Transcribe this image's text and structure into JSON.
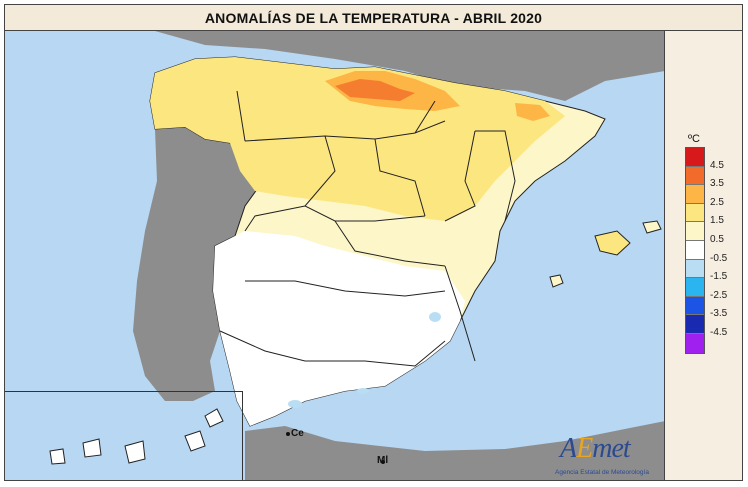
{
  "title": "ANOMALÍAS DE LA TEMPERATURA - ABRIL 2020",
  "legend": {
    "unit": "ºC",
    "entries": [
      {
        "label": "4.5",
        "color": "#d7191c"
      },
      {
        "label": "3.5",
        "color": "#f26b2a"
      },
      {
        "label": "2.5",
        "color": "#fdb545"
      },
      {
        "label": "1.5",
        "color": "#fce680"
      },
      {
        "label": "0.5",
        "color": "#fdf6c8"
      },
      {
        "label": "-0.5",
        "color": "#ffffff"
      },
      {
        "label": "-1.5",
        "color": "#b9def3"
      },
      {
        "label": "-2.5",
        "color": "#2bb5f0"
      },
      {
        "label": "-3.5",
        "color": "#1c55e6"
      },
      {
        "label": "-4.5",
        "color": "#1a2ab0"
      },
      {
        "label": "",
        "color": "#a020f0"
      }
    ]
  },
  "map_labels": {
    "ceuta": "Ce",
    "melilla": "Ml"
  },
  "logo": {
    "first": "A",
    "accent": "E",
    "rest": "met",
    "subtitle": "Agencia Estatal de Meteorología"
  }
}
